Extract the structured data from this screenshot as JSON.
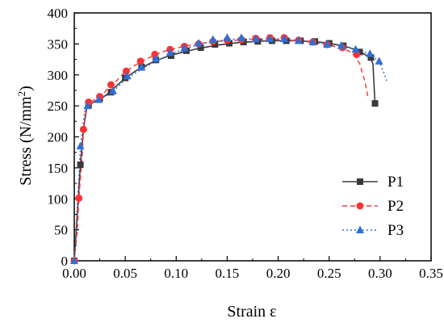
{
  "chart_data": {
    "type": "line",
    "title": "",
    "xlabel": "Strain ε",
    "ylabel_main": "Stress (N/mm",
    "ylabel_sup": "2",
    "ylabel_tail": ")",
    "xlim": [
      0.0,
      0.35
    ],
    "ylim": [
      0,
      400
    ],
    "x_ticks": [
      "0.00",
      "0.05",
      "0.10",
      "0.15",
      "0.20",
      "0.25",
      "0.30",
      "0.35"
    ],
    "x_tick_values": [
      0.0,
      0.05,
      0.1,
      0.15,
      0.2,
      0.25,
      0.3,
      0.35
    ],
    "y_ticks": [
      "0",
      "50",
      "100",
      "150",
      "200",
      "250",
      "300",
      "350",
      "400"
    ],
    "y_tick_values": [
      0,
      50,
      100,
      150,
      200,
      250,
      300,
      350,
      400
    ],
    "grid": false,
    "legend_position": "bottom-right",
    "series": [
      {
        "name": "P1",
        "color": "#3a3a3a",
        "dash": "solid",
        "marker": "square",
        "line": [
          [
            0,
            0
          ],
          [
            0.003,
            75
          ],
          [
            0.006,
            155
          ],
          [
            0.009,
            212
          ],
          [
            0.012,
            245
          ],
          [
            0.015,
            252
          ],
          [
            0.02,
            257
          ],
          [
            0.025,
            262
          ],
          [
            0.03,
            266
          ],
          [
            0.035,
            272
          ],
          [
            0.04,
            280
          ],
          [
            0.05,
            295
          ],
          [
            0.06,
            306
          ],
          [
            0.07,
            315
          ],
          [
            0.08,
            323
          ],
          [
            0.09,
            329
          ],
          [
            0.1,
            334
          ],
          [
            0.11,
            338
          ],
          [
            0.12,
            342
          ],
          [
            0.13,
            345
          ],
          [
            0.14,
            348
          ],
          [
            0.15,
            350
          ],
          [
            0.16,
            352
          ],
          [
            0.17,
            353
          ],
          [
            0.18,
            354
          ],
          [
            0.19,
            355
          ],
          [
            0.2,
            355
          ],
          [
            0.21,
            355
          ],
          [
            0.22,
            355
          ],
          [
            0.23,
            354
          ],
          [
            0.24,
            353
          ],
          [
            0.25,
            351
          ],
          [
            0.26,
            348
          ],
          [
            0.27,
            344
          ],
          [
            0.28,
            338
          ],
          [
            0.29,
            328
          ],
          [
            0.293,
            318
          ],
          [
            0.295,
            254
          ]
        ],
        "markers": [
          [
            0,
            0
          ],
          [
            0.006,
            155
          ],
          [
            0.014,
            251
          ],
          [
            0.025,
            262
          ],
          [
            0.036,
            272
          ],
          [
            0.05,
            295
          ],
          [
            0.066,
            313
          ],
          [
            0.08,
            324
          ],
          [
            0.095,
            331
          ],
          [
            0.11,
            339
          ],
          [
            0.124,
            344
          ],
          [
            0.138,
            349
          ],
          [
            0.152,
            351
          ],
          [
            0.166,
            353
          ],
          [
            0.18,
            354
          ],
          [
            0.194,
            355
          ],
          [
            0.208,
            355
          ],
          [
            0.222,
            355
          ],
          [
            0.236,
            354
          ],
          [
            0.25,
            351
          ],
          [
            0.264,
            347
          ],
          [
            0.28,
            337
          ],
          [
            0.291,
            328
          ],
          [
            0.295,
            254
          ]
        ]
      },
      {
        "name": "P2",
        "color": "#ff3333",
        "dash": "6,4",
        "marker": "circle",
        "line": [
          [
            0,
            0
          ],
          [
            0.003,
            50
          ],
          [
            0.0045,
            100
          ],
          [
            0.008,
            175
          ],
          [
            0.009,
            212
          ],
          [
            0.012,
            250
          ],
          [
            0.016,
            256
          ],
          [
            0.02,
            260
          ],
          [
            0.025,
            265
          ],
          [
            0.03,
            272
          ],
          [
            0.035,
            284
          ],
          [
            0.04,
            288
          ],
          [
            0.05,
            305
          ],
          [
            0.06,
            316
          ],
          [
            0.07,
            325
          ],
          [
            0.08,
            333
          ],
          [
            0.09,
            339
          ],
          [
            0.1,
            343
          ],
          [
            0.11,
            347
          ],
          [
            0.12,
            350
          ],
          [
            0.13,
            352
          ],
          [
            0.14,
            354
          ],
          [
            0.15,
            355
          ],
          [
            0.16,
            356
          ],
          [
            0.17,
            357
          ],
          [
            0.18,
            357
          ],
          [
            0.19,
            357
          ],
          [
            0.2,
            357
          ],
          [
            0.21,
            356
          ],
          [
            0.22,
            355
          ],
          [
            0.23,
            353
          ],
          [
            0.24,
            351
          ],
          [
            0.25,
            348
          ],
          [
            0.26,
            344
          ],
          [
            0.265,
            341
          ],
          [
            0.27,
            338
          ],
          [
            0.275,
            330
          ],
          [
            0.28,
            318
          ],
          [
            0.285,
            290
          ],
          [
            0.288,
            265
          ]
        ],
        "markers": [
          [
            0,
            0
          ],
          [
            0.0045,
            101
          ],
          [
            0.009,
            212
          ],
          [
            0.014,
            256
          ],
          [
            0.025,
            265
          ],
          [
            0.036,
            284
          ],
          [
            0.051,
            306
          ],
          [
            0.065,
            322
          ],
          [
            0.079,
            333
          ],
          [
            0.094,
            341
          ],
          [
            0.108,
            346
          ],
          [
            0.122,
            350
          ],
          [
            0.136,
            354
          ],
          [
            0.15,
            356
          ],
          [
            0.164,
            357
          ],
          [
            0.178,
            359
          ],
          [
            0.192,
            360
          ],
          [
            0.206,
            360
          ],
          [
            0.22,
            356
          ],
          [
            0.234,
            353
          ],
          [
            0.248,
            349
          ],
          [
            0.263,
            344
          ],
          [
            0.277,
            333
          ]
        ]
      },
      {
        "name": "P3",
        "color": "#2f6fd6",
        "dash": "2,3",
        "marker": "triangle",
        "line": [
          [
            0,
            0
          ],
          [
            0.003,
            90
          ],
          [
            0.006,
            185
          ],
          [
            0.01,
            240
          ],
          [
            0.013,
            250
          ],
          [
            0.016,
            254
          ],
          [
            0.02,
            257
          ],
          [
            0.025,
            260
          ],
          [
            0.03,
            265
          ],
          [
            0.035,
            270
          ],
          [
            0.04,
            276
          ],
          [
            0.05,
            292
          ],
          [
            0.06,
            303
          ],
          [
            0.07,
            313
          ],
          [
            0.08,
            322
          ],
          [
            0.09,
            330
          ],
          [
            0.1,
            337
          ],
          [
            0.11,
            343
          ],
          [
            0.12,
            348
          ],
          [
            0.13,
            352
          ],
          [
            0.14,
            355
          ],
          [
            0.15,
            357
          ],
          [
            0.16,
            358
          ],
          [
            0.17,
            358
          ],
          [
            0.18,
            358
          ],
          [
            0.19,
            358
          ],
          [
            0.2,
            358
          ],
          [
            0.21,
            357
          ],
          [
            0.22,
            356
          ],
          [
            0.23,
            354
          ],
          [
            0.24,
            352
          ],
          [
            0.25,
            350
          ],
          [
            0.26,
            347
          ],
          [
            0.27,
            344
          ],
          [
            0.28,
            340
          ],
          [
            0.29,
            333
          ],
          [
            0.295,
            327
          ],
          [
            0.3,
            318
          ],
          [
            0.304,
            302
          ],
          [
            0.307,
            288
          ]
        ],
        "markers": [
          [
            0,
            0
          ],
          [
            0.006,
            185
          ],
          [
            0.013,
            250
          ],
          [
            0.024,
            260
          ],
          [
            0.038,
            274
          ],
          [
            0.052,
            298
          ],
          [
            0.066,
            312
          ],
          [
            0.08,
            326
          ],
          [
            0.094,
            336
          ],
          [
            0.108,
            343
          ],
          [
            0.122,
            351
          ],
          [
            0.136,
            357
          ],
          [
            0.15,
            360
          ],
          [
            0.164,
            360
          ],
          [
            0.178,
            358
          ],
          [
            0.192,
            358
          ],
          [
            0.206,
            358
          ],
          [
            0.22,
            355
          ],
          [
            0.234,
            353
          ],
          [
            0.248,
            349
          ],
          [
            0.262,
            347
          ],
          [
            0.276,
            341
          ],
          [
            0.29,
            334
          ],
          [
            0.299,
            322
          ]
        ]
      }
    ]
  }
}
